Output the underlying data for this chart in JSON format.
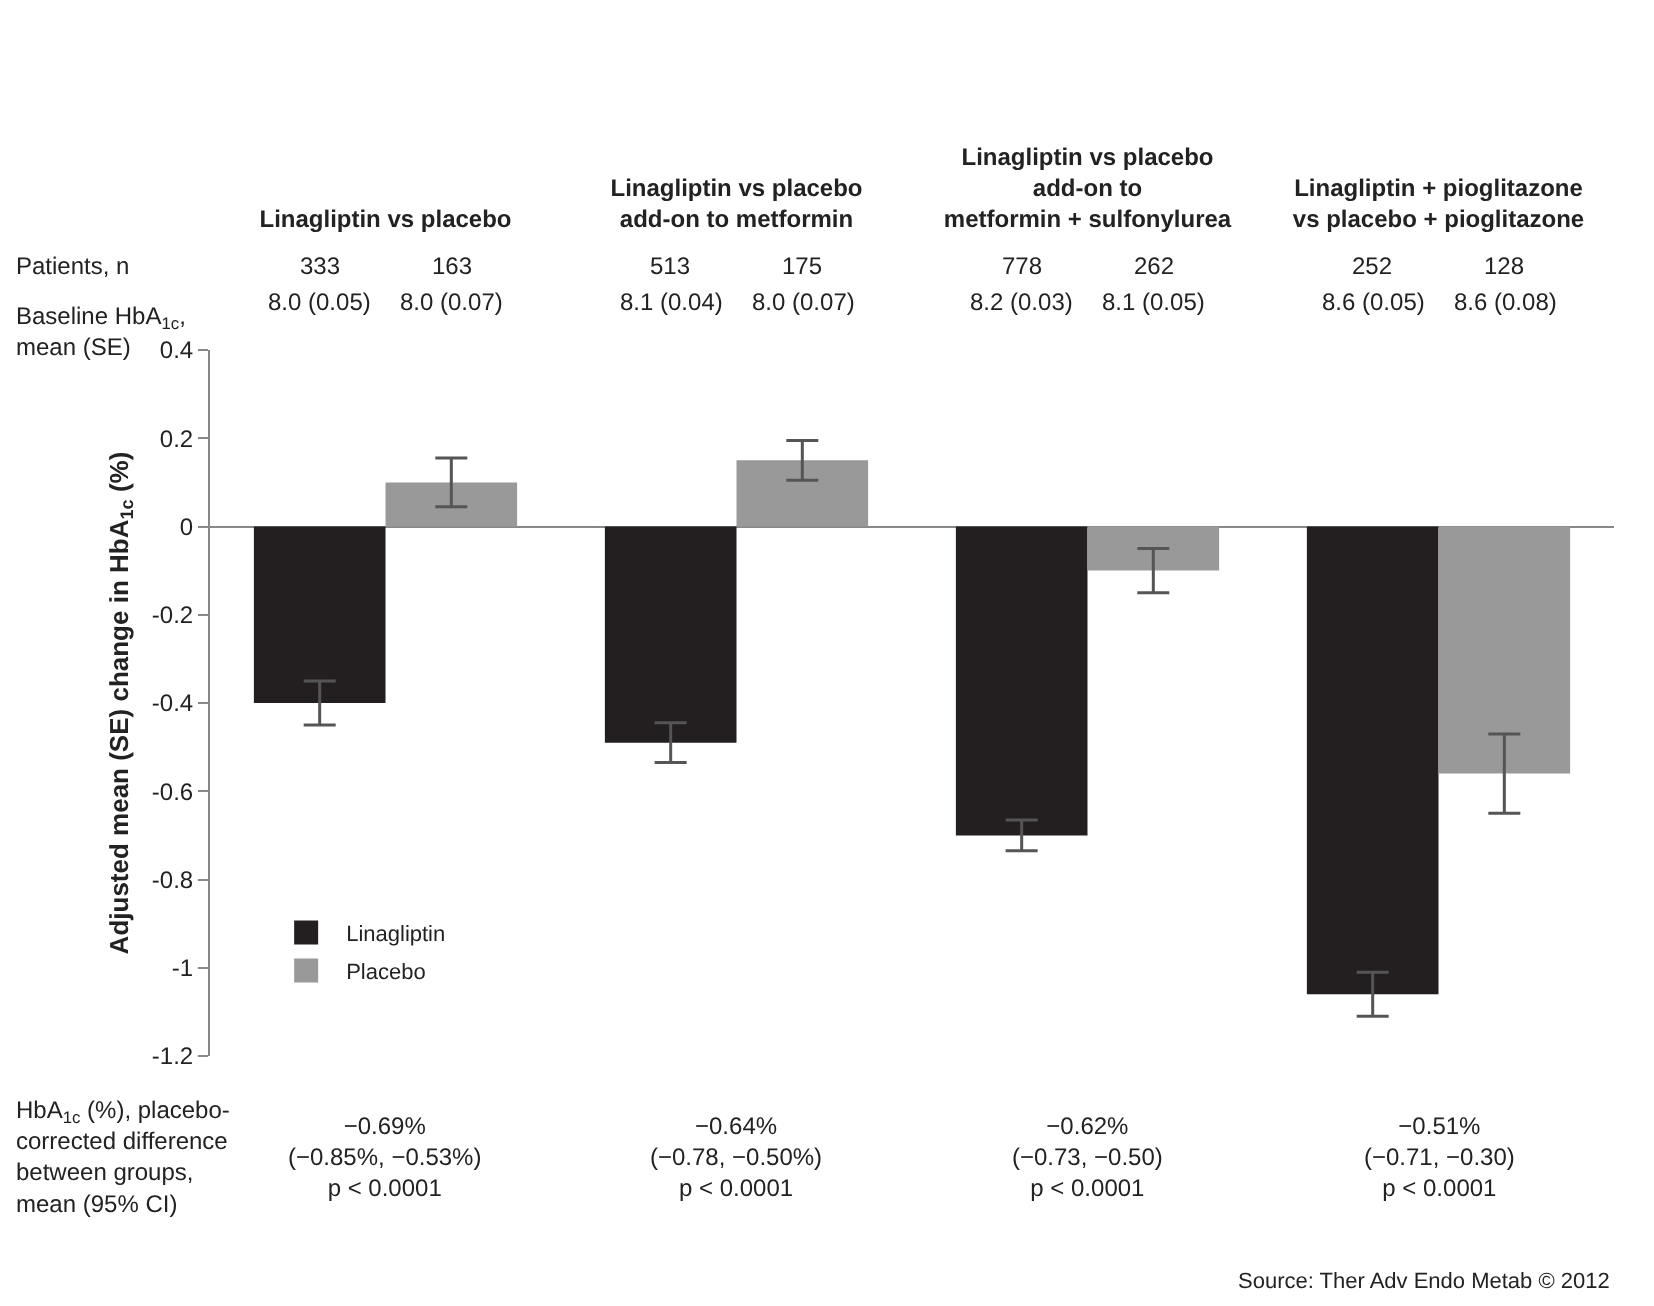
{
  "chart_data": {
    "type": "bar",
    "categories": [
      "Linagliptin vs placebo",
      "Linagliptin vs placebo\nadd-on to metformin",
      "Linagliptin vs placebo\nadd-on to\nmetformin + sulfonylurea",
      "Linagliptin + pioglitazone\nvs placebo + pioglitazone"
    ],
    "series": [
      {
        "name": "Linagliptin",
        "color": "#231f20",
        "values": [
          -0.4,
          -0.49,
          -0.7,
          -1.06
        ],
        "errors": [
          0.05,
          0.045,
          0.035,
          0.05
        ]
      },
      {
        "name": "Placebo",
        "color": "#999999",
        "values": [
          0.1,
          0.15,
          -0.1,
          -0.56
        ],
        "errors": [
          0.055,
          0.045,
          0.05,
          0.09
        ]
      }
    ],
    "ylabel": "Adjusted mean (SE) change in HbA$_{1c}$ (%)",
    "ylim": [
      -1.2,
      0.4
    ],
    "yticks": [
      -1.2,
      -1.0,
      -0.8,
      -0.6,
      -0.4,
      -0.2,
      0,
      0.2,
      0.4
    ],
    "legend": "bottom left",
    "annotations": [
      "Patients, n",
      "Baseline HbA$_{1c}$,\nmean (SE)",
      "333",
      "163",
      "8.0 (0.05)",
      "8.0 (0.07)",
      "513",
      "175",
      "8.1 (0.04)",
      "8.0 (0.07)",
      "778",
      "262",
      "8.2 (0.03)",
      "8.1 (0.05)",
      "252",
      "128",
      "8.6 (0.05)",
      "8.6 (0.08)",
      "HbA$_{1c}$ (%), placebo-\ncorrected difference\nbetween groups,\nmean (95% CI)",
      "−0.69%\n(−0.85%, −0.53%)\np < 0.0001",
      "−0.64%\n(−0.78, −0.50%)\np < 0.0001",
      "−0.62%\n(−0.73, −0.50)\np < 0.0001",
      "−0.51%\n(−0.71, −0.30)\np < 0.0001",
      "Source: Ther Adv Endo Metab © 2012"
    ]
  }
}
